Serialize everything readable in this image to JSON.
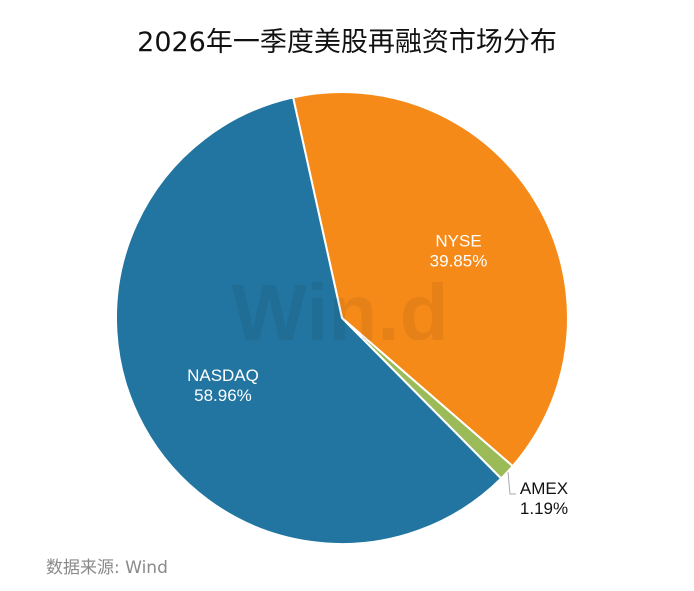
{
  "chart_data": {
    "type": "pie",
    "title": "2026年一季度美股再融资市场分布",
    "slices": [
      {
        "label": "NYSE",
        "value": 39.85,
        "value_label": "39.85%",
        "color": "#f58a19"
      },
      {
        "label": "AMEX",
        "value": 1.19,
        "value_label": "1.19%",
        "color": "#9bbb59"
      },
      {
        "label": "NASDAQ",
        "value": 58.96,
        "value_label": "58.96%",
        "color": "#2275a0"
      }
    ],
    "start_angle_deg": -12.5,
    "direction": "clockwise"
  },
  "source": "数据来源: Wind",
  "watermark": "Win.d"
}
